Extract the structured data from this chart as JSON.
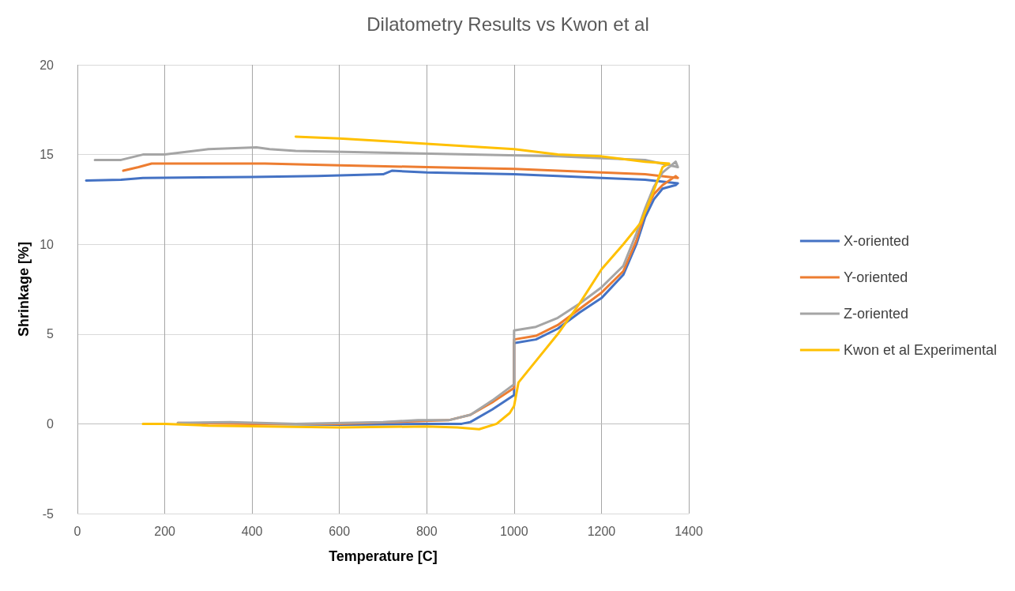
{
  "chart_data": {
    "type": "line",
    "title": "Dilatometry Results vs Kwon et al",
    "xlabel": "Temperature [C]",
    "ylabel": "Shrinkage [%]",
    "xlim": [
      0,
      1400
    ],
    "xticks": [
      0,
      200,
      400,
      600,
      800,
      1000,
      1200,
      1400
    ],
    "ylim": [
      -5,
      20
    ],
    "yticks": [
      -5,
      0,
      5,
      10,
      15,
      20
    ],
    "grid": true,
    "legend": "right",
    "marker": "none",
    "line_style": "solid",
    "series": [
      {
        "name": "X-oriented",
        "color": "#4472c4",
        "x": [
          400,
          600,
          800,
          880,
          900,
          950,
          1000,
          1000,
          1050,
          1100,
          1150,
          1200,
          1250,
          1280,
          1300,
          1320,
          1340,
          1370,
          1375,
          1300,
          1200,
          1100,
          1000,
          800,
          720,
          700,
          550,
          400,
          150,
          100,
          20
        ],
        "values": [
          0,
          -0.05,
          0,
          0,
          0.1,
          0.8,
          1.6,
          4.5,
          4.7,
          5.3,
          6.2,
          7.0,
          8.3,
          10,
          11.5,
          12.5,
          13.1,
          13.3,
          13.4,
          13.6,
          13.7,
          13.8,
          13.9,
          14.0,
          14.1,
          13.9,
          13.8,
          13.75,
          13.7,
          13.6,
          13.55
        ]
      },
      {
        "name": "Y-oriented",
        "color": "#ed7d31",
        "x": [
          230,
          400,
          600,
          850,
          900,
          950,
          1000,
          1000,
          1050,
          1100,
          1150,
          1200,
          1250,
          1280,
          1300,
          1320,
          1340,
          1370,
          1375,
          1300,
          1200,
          1100,
          1000,
          800,
          600,
          430,
          170,
          140,
          105
        ],
        "values": [
          0.05,
          0,
          0,
          0.2,
          0.5,
          1.2,
          2.0,
          4.7,
          4.9,
          5.5,
          6.4,
          7.3,
          8.5,
          10.2,
          11.8,
          12.8,
          13.3,
          13.8,
          13.7,
          13.9,
          14.0,
          14.1,
          14.2,
          14.3,
          14.4,
          14.5,
          14.5,
          14.3,
          14.1
        ]
      },
      {
        "name": "Z-oriented",
        "color": "#a5a5a5",
        "x": [
          230,
          350,
          500,
          700,
          780,
          850,
          900,
          950,
          1000,
          1000,
          1050,
          1100,
          1150,
          1200,
          1250,
          1280,
          1300,
          1320,
          1340,
          1370,
          1375,
          1300,
          1200,
          1100,
          900,
          700,
          500,
          440,
          410,
          300,
          200,
          150,
          100,
          40
        ],
        "values": [
          0.05,
          0.1,
          0,
          0.1,
          0.2,
          0.2,
          0.5,
          1.3,
          2.2,
          5.2,
          5.4,
          5.9,
          6.7,
          7.6,
          8.8,
          10.6,
          12.0,
          13.2,
          14.0,
          14.6,
          14.3,
          14.7,
          14.8,
          14.9,
          15.0,
          15.1,
          15.2,
          15.3,
          15.4,
          15.3,
          15.0,
          15.0,
          14.7,
          14.7
        ]
      },
      {
        "name": "Kwon et al Experimental",
        "color": "#ffc000",
        "x": [
          150,
          200,
          300,
          600,
          800,
          870,
          920,
          960,
          990,
          1000,
          1010,
          1050,
          1100,
          1150,
          1200,
          1250,
          1290,
          1320,
          1340,
          1355,
          1300,
          1200,
          1100,
          1000,
          800,
          600,
          500
        ],
        "values": [
          0,
          0,
          -0.1,
          -0.2,
          -0.15,
          -0.2,
          -0.3,
          0,
          0.6,
          1.0,
          2.3,
          3.5,
          5.0,
          6.7,
          8.6,
          10.0,
          11.2,
          13.0,
          14.3,
          14.5,
          14.6,
          14.9,
          15.0,
          15.3,
          15.6,
          15.9,
          16.0
        ]
      }
    ]
  }
}
